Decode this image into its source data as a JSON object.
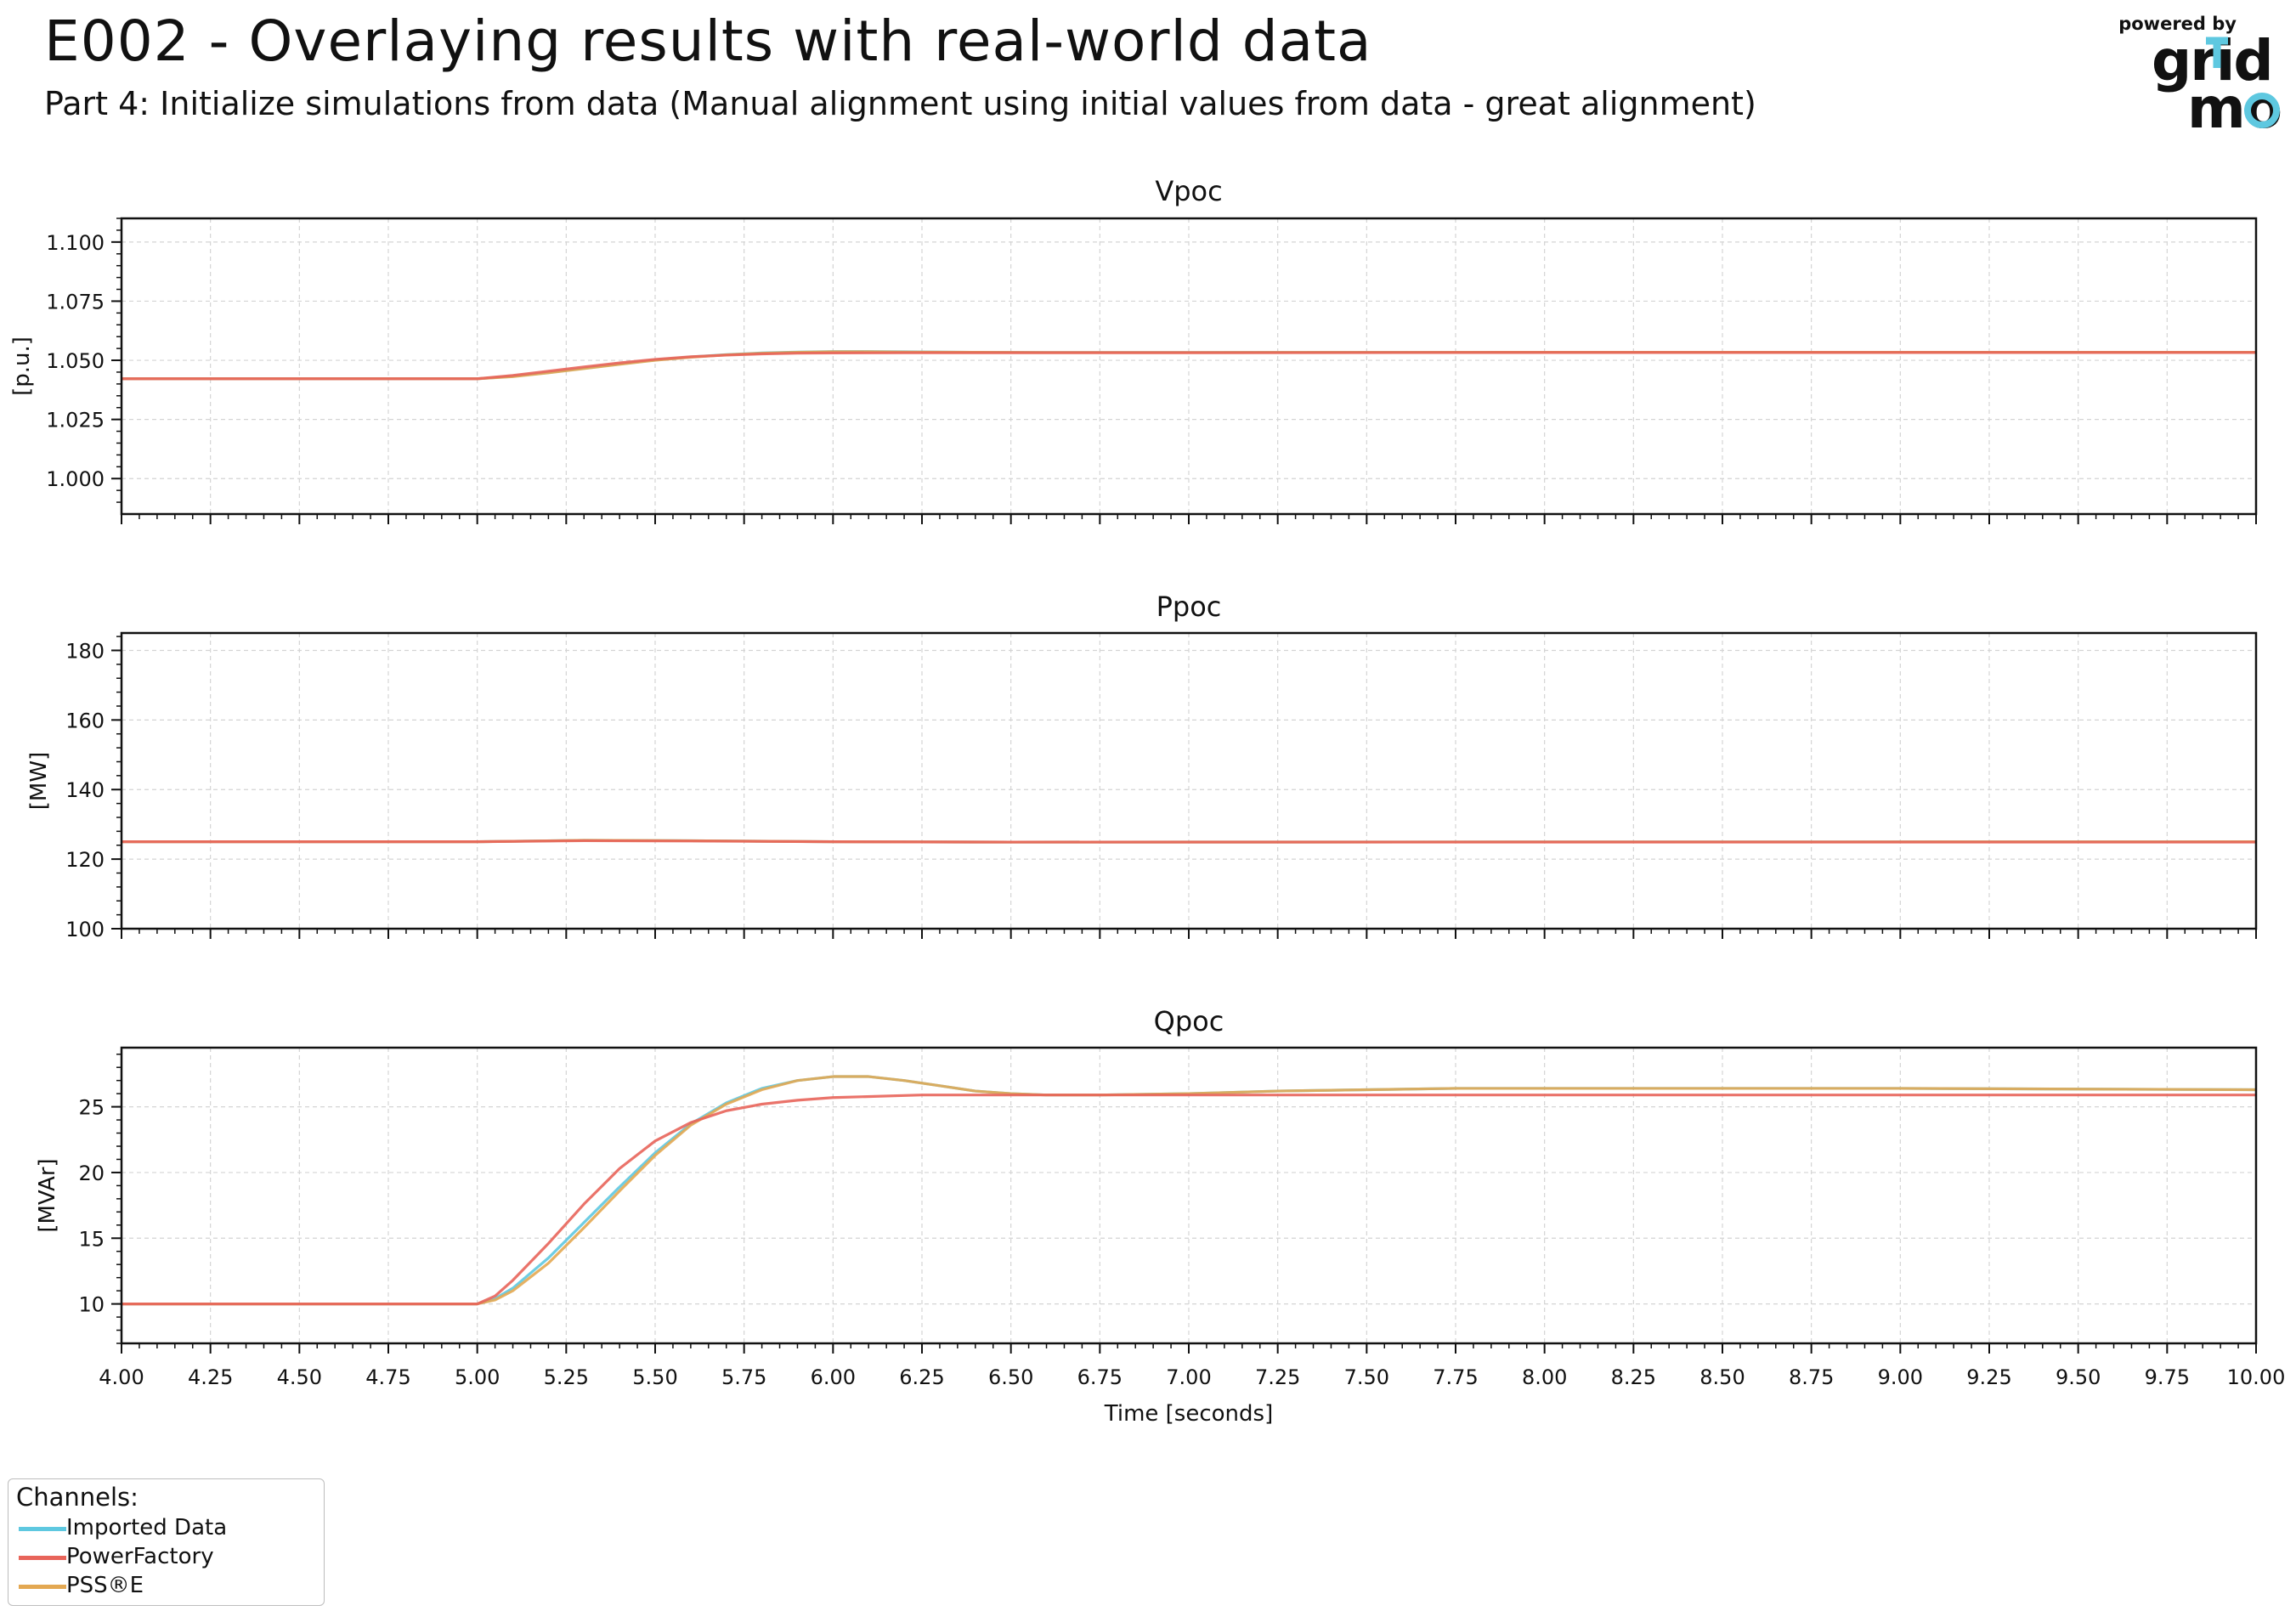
{
  "header": {
    "title": "E002 - Overlaying results with real-world data",
    "subtitle": "Part 4: Initialize simulations from data (Manual alignment using initial values from data - great alignment)"
  },
  "logo": {
    "powered_by": "powered by",
    "word_top": "grid",
    "word_bottom": "mo",
    "icon": "gridmo-logo"
  },
  "colors": {
    "imported": "#5ec8e0",
    "powerfactory": "#e8645a",
    "psse": "#e3a852"
  },
  "legend": {
    "title": "Channels:",
    "items": [
      "Imported Data",
      "PowerFactory",
      "PSS®E"
    ]
  },
  "chart_data": [
    {
      "type": "line",
      "title": "Vpoc",
      "ylabel": "[p.u.]",
      "xlim": [
        4.0,
        10.0
      ],
      "ylim": [
        0.985,
        1.11
      ],
      "yticks": [
        1.0,
        1.025,
        1.05,
        1.075,
        1.1
      ],
      "ytick_labels": [
        "1.000",
        "1.025",
        "1.050",
        "1.075",
        "1.100"
      ],
      "grid": true,
      "series": [
        {
          "name": "Imported Data",
          "x": [
            4.0,
            5.0,
            5.1,
            5.2,
            5.3,
            5.4,
            5.5,
            5.6,
            5.7,
            5.8,
            5.9,
            6.0,
            6.1,
            6.2,
            6.4,
            6.6,
            7.0,
            8.0,
            10.0
          ],
          "y": [
            1.0422,
            1.0422,
            1.0432,
            1.0448,
            1.0466,
            1.0484,
            1.0501,
            1.0514,
            1.0524,
            1.0531,
            1.0535,
            1.0537,
            1.0537,
            1.0536,
            1.0534,
            1.0533,
            1.0533,
            1.0534,
            1.0534
          ]
        },
        {
          "name": "PowerFactory",
          "x": [
            4.0,
            5.0,
            5.1,
            5.2,
            5.3,
            5.4,
            5.5,
            5.6,
            5.7,
            5.8,
            5.9,
            6.0,
            6.2,
            6.5,
            7.0,
            8.0,
            10.0
          ],
          "y": [
            1.0422,
            1.0422,
            1.0436,
            1.0454,
            1.0472,
            1.0489,
            1.0504,
            1.0515,
            1.0522,
            1.0527,
            1.053,
            1.0531,
            1.0532,
            1.0532,
            1.0532,
            1.0533,
            1.0533
          ]
        },
        {
          "name": "PSS®E",
          "x": [
            4.0,
            5.0,
            5.1,
            5.2,
            5.3,
            5.4,
            5.5,
            5.6,
            5.7,
            5.8,
            5.9,
            6.0,
            6.1,
            6.2,
            6.4,
            6.6,
            7.0,
            8.0,
            10.0
          ],
          "y": [
            1.0422,
            1.0422,
            1.0431,
            1.0447,
            1.0465,
            1.0483,
            1.05,
            1.0513,
            1.0523,
            1.053,
            1.0534,
            1.0536,
            1.0536,
            1.0535,
            1.0534,
            1.0533,
            1.0533,
            1.0534,
            1.0534
          ]
        }
      ]
    },
    {
      "type": "line",
      "title": "Ppoc",
      "ylabel": "[MW]",
      "xlim": [
        4.0,
        10.0
      ],
      "ylim": [
        100,
        185
      ],
      "yticks": [
        100,
        120,
        140,
        160,
        180
      ],
      "ytick_labels": [
        "100",
        "120",
        "140",
        "160",
        "180"
      ],
      "grid": true,
      "series": [
        {
          "name": "Imported Data",
          "x": [
            4.0,
            5.0,
            5.3,
            5.6,
            6.0,
            6.5,
            10.0
          ],
          "y": [
            125.0,
            125.0,
            125.4,
            125.3,
            125.0,
            124.9,
            125.0
          ]
        },
        {
          "name": "PowerFactory",
          "x": [
            4.0,
            5.0,
            5.3,
            5.6,
            6.0,
            6.5,
            10.0
          ],
          "y": [
            125.0,
            125.0,
            125.3,
            125.2,
            125.0,
            124.9,
            124.9
          ]
        },
        {
          "name": "PSS®E",
          "x": [
            4.0,
            5.0,
            5.3,
            5.6,
            6.0,
            6.5,
            10.0
          ],
          "y": [
            125.0,
            125.0,
            125.4,
            125.3,
            125.0,
            124.9,
            125.0
          ]
        }
      ]
    },
    {
      "type": "line",
      "title": "Qpoc",
      "ylabel": "[MVAr]",
      "xlabel": "Time [seconds]",
      "xlim": [
        4.0,
        10.0
      ],
      "ylim": [
        7.0,
        29.5
      ],
      "yticks": [
        10,
        15,
        20,
        25
      ],
      "ytick_labels": [
        "10",
        "15",
        "20",
        "25"
      ],
      "xticks": [
        4.0,
        4.25,
        4.5,
        4.75,
        5.0,
        5.25,
        5.5,
        5.75,
        6.0,
        6.25,
        6.5,
        6.75,
        7.0,
        7.25,
        7.5,
        7.75,
        8.0,
        8.25,
        8.5,
        8.75,
        9.0,
        9.25,
        9.5,
        9.75,
        10.0
      ],
      "xtick_labels": [
        "4.00",
        "4.25",
        "4.50",
        "4.75",
        "5.00",
        "5.25",
        "5.50",
        "5.75",
        "6.00",
        "6.25",
        "6.50",
        "6.75",
        "7.00",
        "7.25",
        "7.50",
        "7.75",
        "8.00",
        "8.25",
        "8.50",
        "8.75",
        "9.00",
        "9.25",
        "9.50",
        "9.75",
        "10.00"
      ],
      "grid": true,
      "series": [
        {
          "name": "Imported Data",
          "x": [
            4.0,
            5.0,
            5.05,
            5.1,
            5.2,
            5.3,
            5.4,
            5.5,
            5.6,
            5.7,
            5.8,
            5.9,
            6.0,
            6.1,
            6.2,
            6.3,
            6.4,
            6.5,
            6.6,
            6.75,
            7.0,
            7.25,
            7.5,
            7.75,
            8.0,
            9.0,
            10.0
          ],
          "y": [
            10.0,
            10.0,
            10.4,
            11.2,
            13.5,
            16.2,
            18.9,
            21.5,
            23.7,
            25.3,
            26.4,
            27.0,
            27.3,
            27.3,
            27.0,
            26.6,
            26.2,
            26.0,
            25.9,
            25.9,
            26.0,
            26.2,
            26.3,
            26.4,
            26.4,
            26.4,
            26.3
          ]
        },
        {
          "name": "PowerFactory",
          "x": [
            4.0,
            5.0,
            5.05,
            5.1,
            5.2,
            5.3,
            5.4,
            5.5,
            5.6,
            5.7,
            5.8,
            5.9,
            6.0,
            6.25,
            6.5,
            7.0,
            8.0,
            10.0
          ],
          "y": [
            10.0,
            10.0,
            10.6,
            11.8,
            14.6,
            17.6,
            20.3,
            22.4,
            23.8,
            24.7,
            25.2,
            25.5,
            25.7,
            25.9,
            25.9,
            25.9,
            25.9,
            25.9
          ]
        },
        {
          "name": "PSS®E",
          "x": [
            4.0,
            5.0,
            5.05,
            5.1,
            5.2,
            5.3,
            5.4,
            5.5,
            5.6,
            5.7,
            5.8,
            5.9,
            6.0,
            6.1,
            6.2,
            6.3,
            6.4,
            6.5,
            6.6,
            6.75,
            7.0,
            7.25,
            7.5,
            7.75,
            8.0,
            9.0,
            10.0
          ],
          "y": [
            10.0,
            10.0,
            10.3,
            11.0,
            13.1,
            15.8,
            18.6,
            21.3,
            23.6,
            25.2,
            26.3,
            27.0,
            27.3,
            27.3,
            27.0,
            26.6,
            26.2,
            26.0,
            25.9,
            25.9,
            26.0,
            26.2,
            26.3,
            26.4,
            26.4,
            26.4,
            26.3
          ]
        }
      ]
    }
  ]
}
